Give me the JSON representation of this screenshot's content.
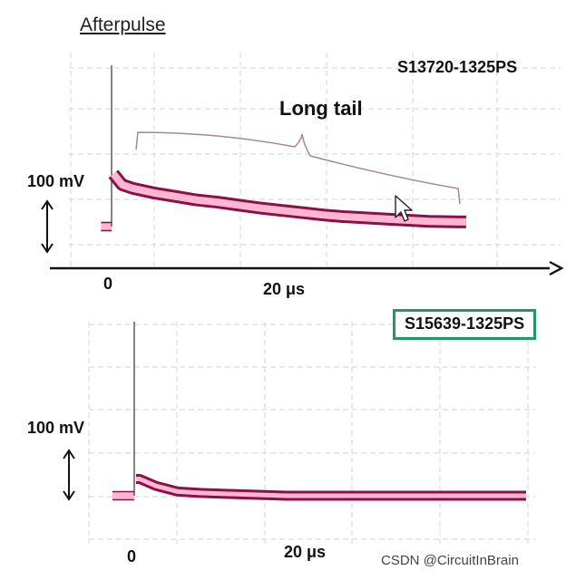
{
  "heading": "Afterpulse",
  "annotation": "Long tail",
  "watermark": "CSDN @CircuitInBrain",
  "colors": {
    "trace_fill": "#ffb6d2",
    "trace_edge": "#8a1048",
    "grid": "#dcdcdc",
    "badge_border": "#1f9a64",
    "axis": "#111111"
  },
  "icons": [
    "double-arrow-icon",
    "double-arrow-icon",
    "mouse-cursor-icon"
  ],
  "chart_data": [
    {
      "type": "line",
      "title": "S13720-1325PS",
      "scale_label": "100 mV",
      "x_tick_labels": [
        "0",
        "20 μs"
      ],
      "x": [
        -1,
        0,
        0.3,
        1,
        2,
        4,
        6,
        8,
        10,
        12,
        14,
        16,
        18,
        20,
        22,
        24,
        26,
        28,
        30,
        33.5
      ],
      "series": [
        {
          "values": [
            0,
            0,
            132,
            72,
            66,
            58,
            52,
            46,
            42,
            37,
            32,
            28,
            24,
            20,
            17,
            15,
            13,
            11,
            9,
            8
          ]
        }
      ],
      "grid": true
    },
    {
      "type": "line",
      "title": "S15639-1325PS",
      "scale_label": "100 mV",
      "x_tick_labels": [
        "0",
        "20 μs"
      ],
      "x": [
        -2,
        0,
        0.2,
        0.5,
        2,
        4,
        6,
        10,
        14,
        20,
        30,
        36
      ],
      "series": [
        {
          "values": [
            0,
            0,
            125,
            12,
            7,
            3,
            2,
            1,
            0,
            0,
            0,
            0
          ]
        }
      ],
      "grid": true
    }
  ]
}
